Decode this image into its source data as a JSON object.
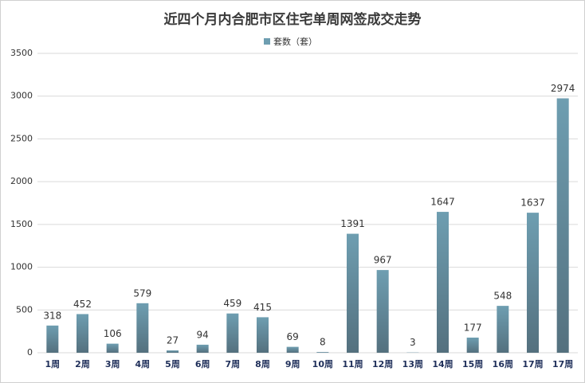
{
  "chart_data": {
    "type": "bar",
    "title": "近四个月内合肥市区住宅单周网签成交走势",
    "categories": [
      "1周",
      "2周",
      "3周",
      "4周",
      "5周",
      "6周",
      "7周",
      "8周",
      "9周",
      "10周",
      "11周",
      "12周",
      "13周",
      "14周",
      "15周",
      "16周",
      "17周",
      "17周"
    ],
    "series": [
      {
        "name": "套数（套）",
        "color": "#6e9eb1",
        "values": [
          318,
          452,
          106,
          579,
          27,
          94,
          459,
          415,
          69,
          8,
          1391,
          967,
          3,
          1647,
          177,
          548,
          1637,
          2974
        ]
      }
    ],
    "ylim": [
      0,
      3500
    ],
    "yticks": [
      0,
      500,
      1000,
      1500,
      2000,
      2500,
      3000,
      3500
    ],
    "grid": true,
    "legend": "top"
  }
}
